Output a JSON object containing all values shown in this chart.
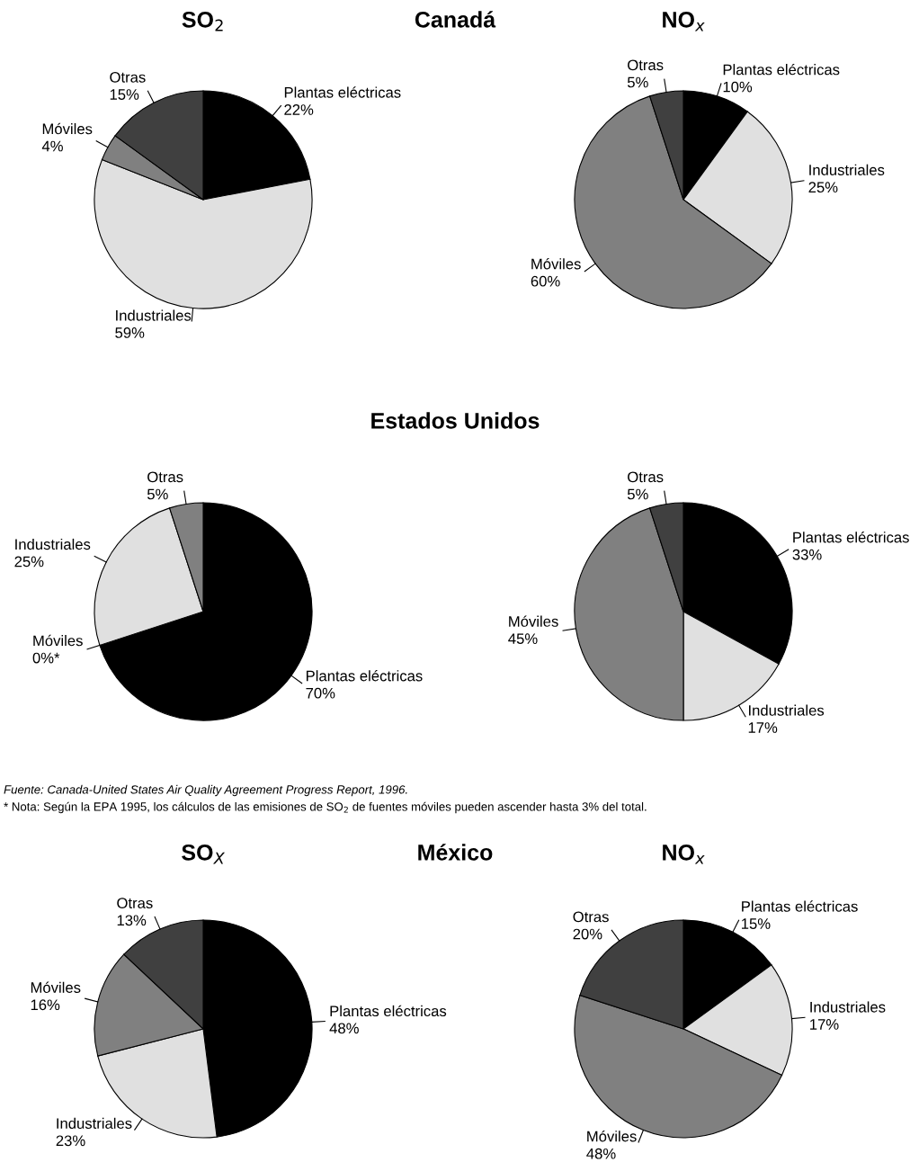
{
  "chart_data": [
    {
      "type": "pie",
      "title": "SO$_{2}$",
      "subtitle": "Canadá",
      "categories": [
        "Plantas eléctricas",
        "Industriales",
        "Móviles",
        "Otras"
      ],
      "values": [
        22,
        59,
        4,
        15
      ],
      "value_labels": [
        "22%",
        "59%",
        "4%",
        "15%"
      ],
      "colors": [
        "#000000",
        "#e0e0e0",
        "#808080",
        "#404040"
      ]
    },
    {
      "type": "pie",
      "title": "NO$_{x}$",
      "categories": [
        "Plantas eléctricas",
        "Industriales",
        "Móviles",
        "Otras"
      ],
      "values": [
        10,
        25,
        60,
        5
      ],
      "value_labels": [
        "10%",
        "25%",
        "60%",
        "5%"
      ],
      "colors": [
        "#000000",
        "#e0e0e0",
        "#808080",
        "#404040"
      ]
    },
    {
      "type": "pie",
      "subtitle": "Estados Unidos",
      "categories": [
        "Plantas eléctricas",
        "Móviles",
        "Industriales",
        "Otras"
      ],
      "values": [
        70,
        0,
        25,
        5
      ],
      "value_labels": [
        "70%",
        "0%*",
        "25%",
        "5%"
      ],
      "colors": [
        "#000000",
        "#808080",
        "#e0e0e0",
        "#808080"
      ],
      "annotations": [
        "Fuente: Canada-United States Air Quality Agreement Progress Report, 1996.",
        "* Nota: Según la EPA 1995, los cálculos de las emisiones de SO$_{2}$ de fuentes móviles pueden ascender hasta 3% del total."
      ]
    },
    {
      "type": "pie",
      "categories": [
        "Plantas eléctricas",
        "Industriales",
        "Móviles",
        "Otras"
      ],
      "values": [
        33,
        17,
        45,
        5
      ],
      "value_labels": [
        "33%",
        "17%",
        "45%",
        "5%"
      ],
      "colors": [
        "#000000",
        "#e0e0e0",
        "#808080",
        "#404040"
      ]
    },
    {
      "type": "pie",
      "title": "SO$_{X}$",
      "subtitle": "México",
      "categories": [
        "Plantas eléctricas",
        "Industriales",
        "Móviles",
        "Otras"
      ],
      "values": [
        48,
        23,
        16,
        13
      ],
      "value_labels": [
        "48%",
        "23%",
        "16%",
        "13%"
      ],
      "colors": [
        "#000000",
        "#e0e0e0",
        "#808080",
        "#404040"
      ]
    },
    {
      "type": "pie",
      "title": "NO$_{x}$",
      "categories": [
        "Plantas eléctricas",
        "Industriales",
        "Móviles",
        "Otras"
      ],
      "values": [
        15,
        17,
        48,
        20
      ],
      "value_labels": [
        "15%",
        "17%",
        "48%",
        "20%"
      ],
      "colors": [
        "#000000",
        "#e0e0e0",
        "#808080",
        "#404040"
      ]
    }
  ]
}
